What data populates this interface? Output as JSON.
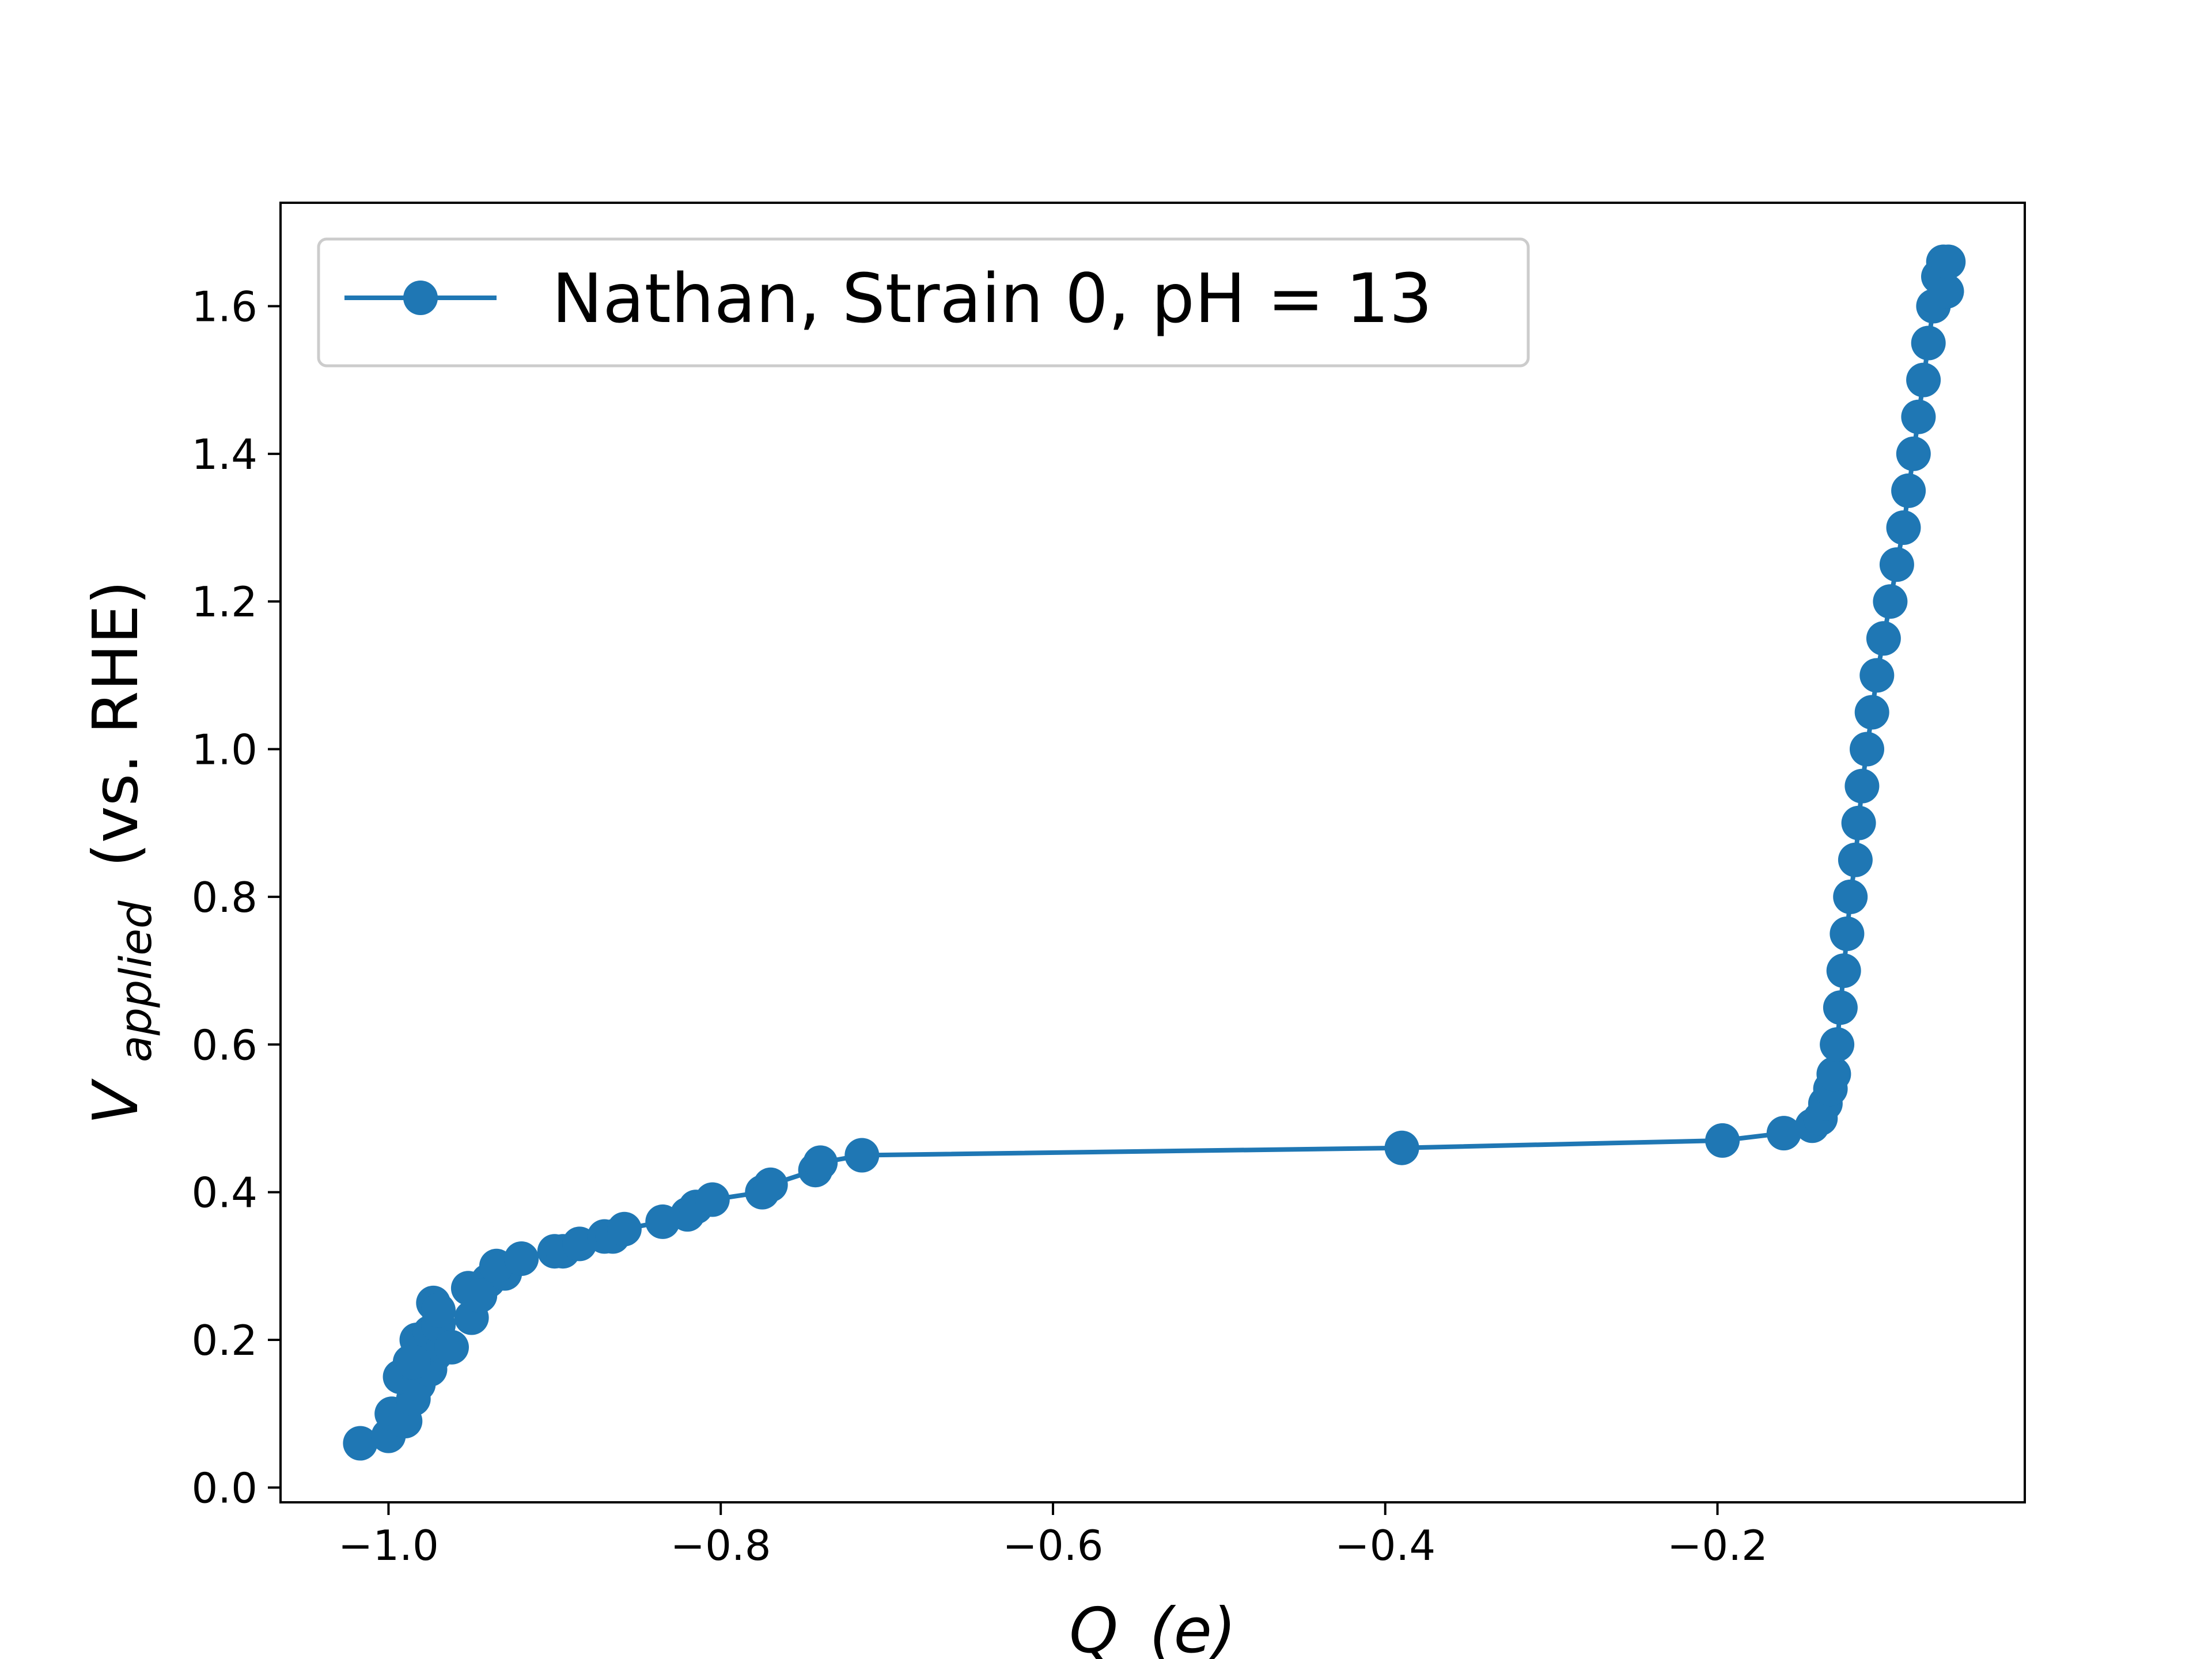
{
  "chart_data": {
    "type": "line",
    "title": "",
    "xlabel": {
      "main": "Q",
      "unit": "(e)"
    },
    "ylabel": {
      "main": "V",
      "subscript": "applied",
      "unit": "(vs. RHE)"
    },
    "xlim": [
      -1.065,
      -0.015
    ],
    "ylim": [
      -0.02,
      1.74
    ],
    "grid": false,
    "legend_position": "top-left",
    "x_ticks": [
      {
        "value": -1.0,
        "label": "−1.0"
      },
      {
        "value": -0.8,
        "label": "−0.8"
      },
      {
        "value": -0.6,
        "label": "−0.6"
      },
      {
        "value": -0.4,
        "label": "−0.4"
      },
      {
        "value": -0.2,
        "label": "−0.2"
      }
    ],
    "y_ticks": [
      {
        "value": 0.0,
        "label": "0.0"
      },
      {
        "value": 0.2,
        "label": "0.2"
      },
      {
        "value": 0.4,
        "label": "0.4"
      },
      {
        "value": 0.6,
        "label": "0.6"
      },
      {
        "value": 0.8,
        "label": "0.8"
      },
      {
        "value": 1.0,
        "label": "1.0"
      },
      {
        "value": 1.2,
        "label": "1.2"
      },
      {
        "value": 1.4,
        "label": "1.4"
      },
      {
        "value": 1.6,
        "label": "1.6"
      }
    ],
    "series": [
      {
        "name": "Nathan, Strain 0, pH = 13",
        "color": "#1f77b4",
        "marker": "circle",
        "x": [
          -1.017,
          -1.0,
          -0.998,
          -0.99,
          -0.985,
          -0.993,
          -0.982,
          -0.975,
          -0.987,
          -0.983,
          -0.972,
          -0.975,
          -0.967,
          -0.97,
          -0.985,
          -0.973,
          -0.962,
          -0.97,
          -0.95,
          -0.945,
          -0.952,
          -0.94,
          -0.945,
          -0.93,
          -0.935,
          -0.92,
          -0.9,
          -0.895,
          -0.885,
          -0.87,
          -0.865,
          -0.858,
          -0.835,
          -0.82,
          -0.815,
          -0.805,
          -0.775,
          -0.77,
          -0.743,
          -0.74,
          -0.715,
          -0.39,
          -0.197,
          -0.16,
          -0.143,
          -0.138,
          -0.135,
          -0.132,
          -0.13,
          -0.128,
          -0.126,
          -0.124,
          -0.122,
          -0.12,
          -0.117,
          -0.115,
          -0.113,
          -0.11,
          -0.107,
          -0.104,
          -0.1,
          -0.096,
          -0.092,
          -0.088,
          -0.085,
          -0.082,
          -0.079,
          -0.076,
          -0.073,
          -0.07,
          -0.067,
          -0.064,
          -0.062,
          -0.061
        ],
        "y": [
          0.06,
          0.07,
          0.1,
          0.09,
          0.12,
          0.15,
          0.14,
          0.16,
          0.17,
          0.2,
          0.18,
          0.21,
          0.19,
          0.22,
          0.17,
          0.25,
          0.19,
          0.24,
          0.23,
          0.26,
          0.27,
          0.28,
          0.26,
          0.29,
          0.3,
          0.31,
          0.32,
          0.32,
          0.33,
          0.34,
          0.34,
          0.35,
          0.36,
          0.37,
          0.38,
          0.39,
          0.4,
          0.41,
          0.43,
          0.44,
          0.45,
          0.46,
          0.47,
          0.48,
          0.49,
          0.5,
          0.52,
          0.54,
          0.56,
          0.6,
          0.65,
          0.7,
          0.75,
          0.8,
          0.85,
          0.9,
          0.95,
          1.0,
          1.05,
          1.1,
          1.15,
          1.2,
          1.25,
          1.3,
          1.35,
          1.4,
          1.45,
          1.5,
          1.55,
          1.6,
          1.64,
          1.66,
          1.62,
          1.66
        ]
      }
    ]
  }
}
